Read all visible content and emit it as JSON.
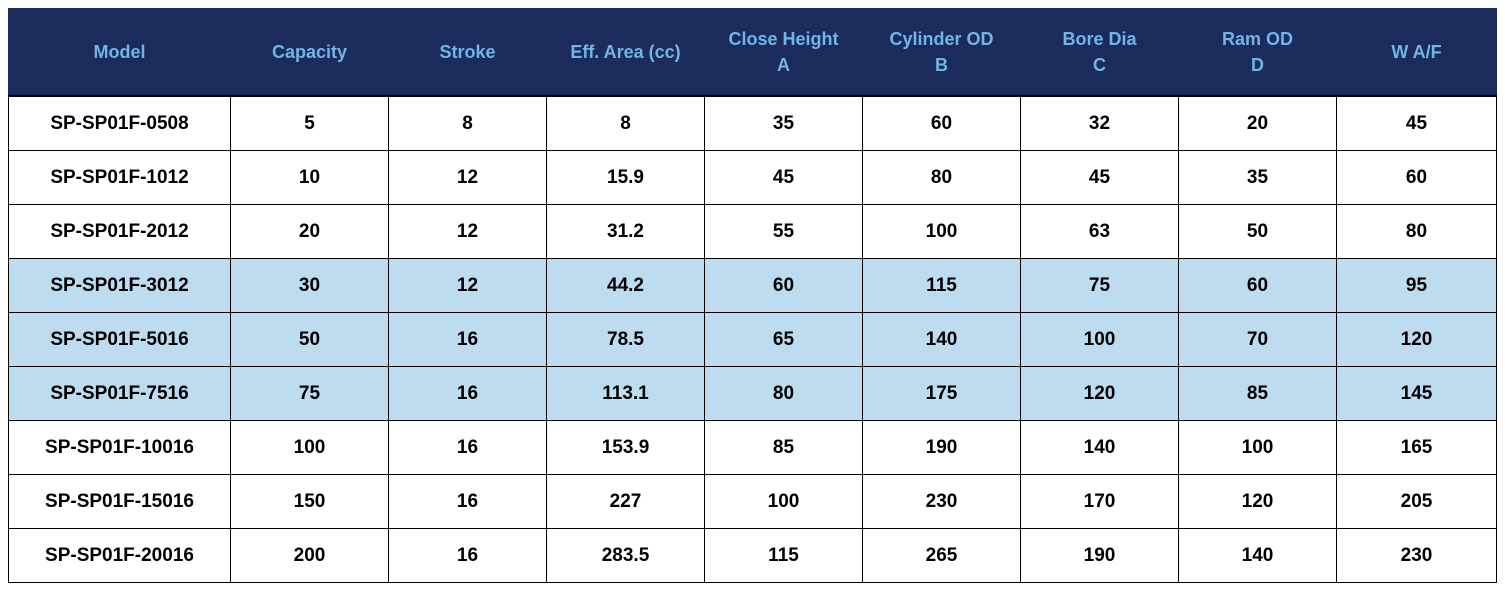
{
  "table": {
    "header_bg": "#1b2b5b",
    "header_text_color": "#6fb6e6",
    "highlight_color": "#bddcef",
    "columns": [
      {
        "line1": "Model",
        "line2": ""
      },
      {
        "line1": "Capacity",
        "line2": ""
      },
      {
        "line1": "Stroke",
        "line2": ""
      },
      {
        "line1": "Eff. Area (cc)",
        "line2": ""
      },
      {
        "line1": "Close Height",
        "line2": "A"
      },
      {
        "line1": "Cylinder OD",
        "line2": "B"
      },
      {
        "line1": "Bore Dia",
        "line2": "C"
      },
      {
        "line1": "Ram OD",
        "line2": "D"
      },
      {
        "line1": "W A/F",
        "line2": ""
      }
    ],
    "rows": [
      {
        "highlight": false,
        "cells": [
          "SP-SP01F-0508",
          "5",
          "8",
          "8",
          "35",
          "60",
          "32",
          "20",
          "45"
        ]
      },
      {
        "highlight": false,
        "cells": [
          "SP-SP01F-1012",
          "10",
          "12",
          "15.9",
          "45",
          "80",
          "45",
          "35",
          "60"
        ]
      },
      {
        "highlight": false,
        "cells": [
          "SP-SP01F-2012",
          "20",
          "12",
          "31.2",
          "55",
          "100",
          "63",
          "50",
          "80"
        ]
      },
      {
        "highlight": true,
        "cells": [
          "SP-SP01F-3012",
          "30",
          "12",
          "44.2",
          "60",
          "115",
          "75",
          "60",
          "95"
        ]
      },
      {
        "highlight": true,
        "cells": [
          "SP-SP01F-5016",
          "50",
          "16",
          "78.5",
          "65",
          "140",
          "100",
          "70",
          "120"
        ]
      },
      {
        "highlight": true,
        "cells": [
          "SP-SP01F-7516",
          "75",
          "16",
          "113.1",
          "80",
          "175",
          "120",
          "85",
          "145"
        ]
      },
      {
        "highlight": false,
        "cells": [
          "SP-SP01F-10016",
          "100",
          "16",
          "153.9",
          "85",
          "190",
          "140",
          "100",
          "165"
        ]
      },
      {
        "highlight": false,
        "cells": [
          "SP-SP01F-15016",
          "150",
          "16",
          "227",
          "100",
          "230",
          "170",
          "120",
          "205"
        ]
      },
      {
        "highlight": false,
        "cells": [
          "SP-SP01F-20016",
          "200",
          "16",
          "283.5",
          "115",
          "265",
          "190",
          "140",
          "230"
        ]
      }
    ]
  }
}
